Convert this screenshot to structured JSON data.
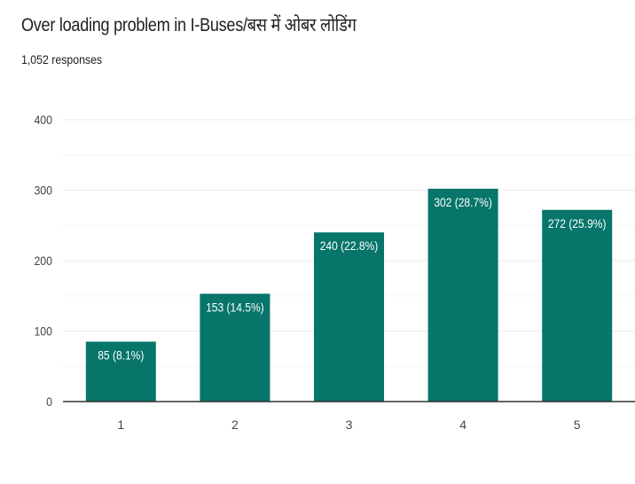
{
  "header": {
    "title": "Over loading problem in I-Buses/बस में ओबर लोडिंग",
    "responses": "1,052 responses"
  },
  "colors": {
    "bar": "#08756a",
    "gridline": "#eeeeee",
    "axis": "#333333",
    "text": "#202124"
  },
  "chart_data": {
    "type": "bar",
    "title": "Over loading problem in I-Buses/बस में ओबर लोडिंग",
    "xlabel": "",
    "ylabel": "",
    "categories": [
      "1",
      "2",
      "3",
      "4",
      "5"
    ],
    "values": [
      85,
      153,
      240,
      302,
      272
    ],
    "data_labels": [
      "85 (8.1%)",
      "153 (14.5%)",
      "240 (22.8%)",
      "302 (28.7%)",
      "272 (25.9%)"
    ],
    "ylim": [
      0,
      400
    ],
    "yticks": [
      0,
      100,
      200,
      300,
      400
    ],
    "grid": true,
    "legend": "none"
  }
}
